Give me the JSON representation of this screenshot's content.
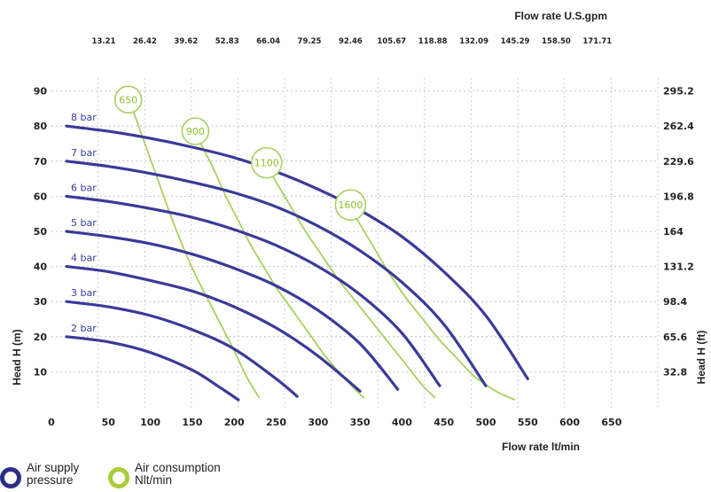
{
  "chart_data": {
    "type": "line",
    "top_axis_title": "Flow rate U.S.gpm",
    "top_ticks": [
      "13.21",
      "26.42",
      "39.62",
      "52.83",
      "66.04",
      "79.25",
      "92.46",
      "105.67",
      "118.88",
      "132.09",
      "145.29",
      "158.50",
      "171.71"
    ],
    "x_ticks": [
      "0",
      "50",
      "100",
      "150",
      "200",
      "250",
      "300",
      "350",
      "400",
      "450",
      "500",
      "550",
      "600",
      "650"
    ],
    "xlabel": "Flow rate  lt/min",
    "y_left_ticks": [
      "10",
      "20",
      "30",
      "40",
      "50",
      "60",
      "70",
      "80",
      "90"
    ],
    "ylabel_left": "Head H (m)",
    "y_right_ticks": [
      "32.8",
      "65.6",
      "98.4",
      "131.2",
      "164",
      "196.8",
      "229.6",
      "262.4",
      "295.2"
    ],
    "ylabel_right": "Head H (ft)",
    "xlim": [
      0,
      700
    ],
    "ylim": [
      0,
      100
    ],
    "grid": true,
    "series": [
      {
        "name": "2 bar",
        "color": "#3a3a9a",
        "x": [
          0,
          50,
          100,
          150,
          180,
          205
        ],
        "y": [
          20,
          18.5,
          15.5,
          10.5,
          6,
          2
        ]
      },
      {
        "name": "3 bar",
        "color": "#3a3a9a",
        "x": [
          0,
          50,
          100,
          150,
          200,
          250,
          275
        ],
        "y": [
          30,
          28.5,
          26,
          22,
          16.5,
          8,
          3
        ]
      },
      {
        "name": "4 bar",
        "color": "#3a3a9a",
        "x": [
          0,
          50,
          100,
          150,
          200,
          250,
          300,
          350
        ],
        "y": [
          40,
          38.5,
          36,
          33,
          28.5,
          22.5,
          14.5,
          4.5
        ]
      },
      {
        "name": "5 bar",
        "color": "#3a3a9a",
        "x": [
          0,
          50,
          100,
          150,
          200,
          250,
          300,
          350,
          395
        ],
        "y": [
          50,
          48.5,
          46.5,
          43.5,
          39.5,
          34.5,
          27.5,
          18,
          5
        ]
      },
      {
        "name": "6 bar",
        "color": "#3a3a9a",
        "x": [
          0,
          50,
          100,
          150,
          200,
          250,
          300,
          350,
          400,
          445
        ],
        "y": [
          60,
          58.5,
          56.5,
          54,
          50.5,
          46,
          40,
          32,
          21,
          6
        ]
      },
      {
        "name": "7 bar",
        "color": "#3a3a9a",
        "x": [
          0,
          50,
          100,
          150,
          200,
          250,
          300,
          350,
          400,
          450,
          500
        ],
        "y": [
          70,
          68.5,
          66.5,
          64,
          61,
          57,
          51.5,
          44.5,
          35.5,
          23.5,
          6
        ]
      },
      {
        "name": "8 bar",
        "color": "#3a3a9a",
        "x": [
          0,
          50,
          100,
          150,
          200,
          250,
          300,
          350,
          400,
          450,
          500,
          550
        ],
        "y": [
          80,
          78.5,
          76.5,
          74,
          71,
          67,
          62,
          56,
          48.5,
          38.5,
          26,
          8
        ]
      },
      {
        "name": "650",
        "color": "#a8d060",
        "x": [
          80,
          95,
          110,
          125,
          140,
          155,
          170,
          185,
          200,
          215,
          230
        ],
        "y": [
          84,
          74,
          64,
          54,
          45,
          37,
          30,
          23,
          16,
          8.5,
          2.5
        ]
      },
      {
        "name": "900",
        "color": "#a8d060",
        "x": [
          160,
          175,
          190,
          205,
          220,
          235,
          250,
          265,
          280,
          295,
          310,
          325,
          340,
          355
        ],
        "y": [
          75,
          68,
          60,
          53,
          46,
          40,
          34,
          29,
          24,
          19,
          14,
          10,
          6,
          2.5
        ]
      },
      {
        "name": "1100",
        "color": "#a8d060",
        "x": [
          245,
          265,
          285,
          305,
          325,
          345,
          365,
          385,
          405,
          425,
          440
        ],
        "y": [
          66,
          58,
          50,
          43,
          36,
          30,
          24,
          18,
          12,
          6,
          2.5
        ]
      },
      {
        "name": "1600",
        "color": "#a8d060",
        "x": [
          345,
          365,
          385,
          405,
          425,
          445,
          465,
          485,
          505,
          520,
          535
        ],
        "y": [
          54,
          46,
          38,
          31,
          25,
          19,
          14,
          9,
          5.5,
          3.5,
          2
        ]
      }
    ]
  },
  "legend": {
    "supply": {
      "line1": "Air supply",
      "line2": "pressure",
      "color": "#2a2f86"
    },
    "consumption": {
      "line1": "Air consumption",
      "line2": "Nlt/min",
      "color": "#a8cc3a"
    }
  }
}
